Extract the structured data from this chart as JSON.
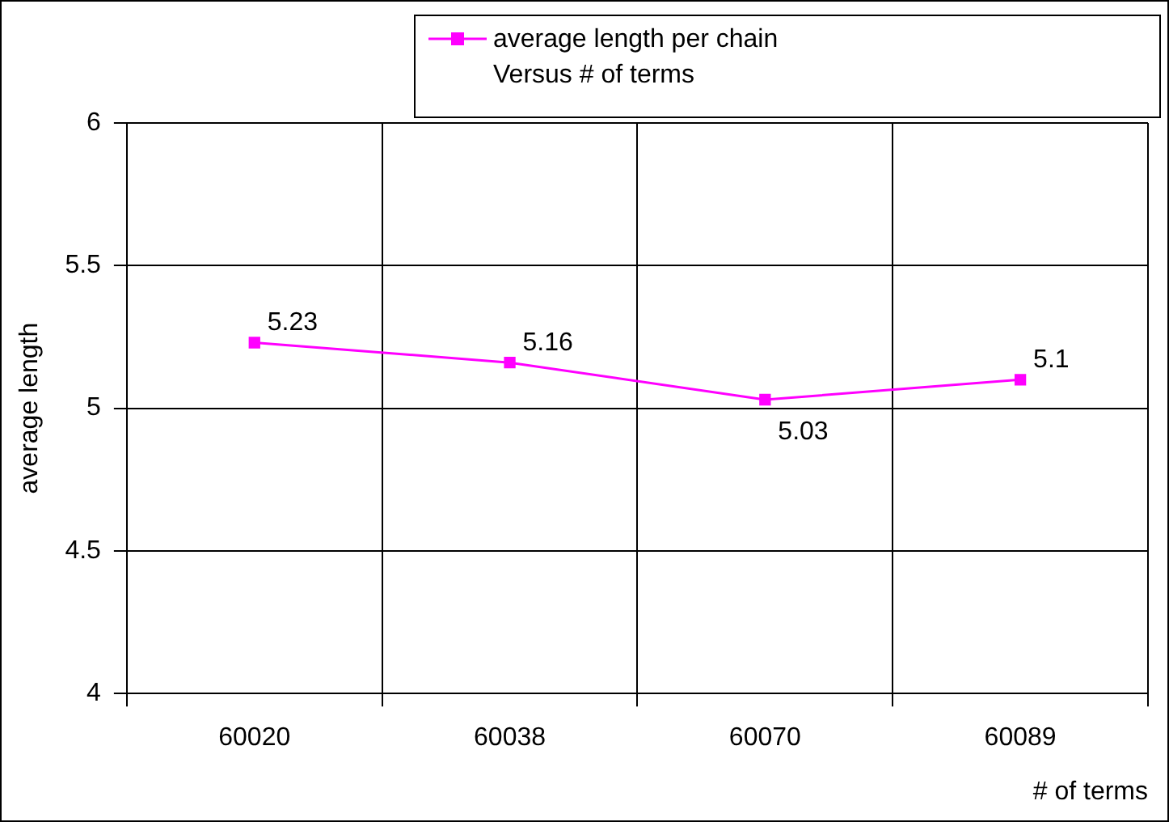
{
  "chart_data": {
    "type": "line",
    "xlabel": "# of terms",
    "ylabel": "average length",
    "categories": [
      "60020",
      "60038",
      "60070",
      "60089"
    ],
    "series": [
      {
        "name": "average length per chain Versus # of terms",
        "color": "#ff00ff",
        "values": [
          5.23,
          5.16,
          5.03,
          5.1
        ]
      }
    ],
    "ylim": [
      4,
      6
    ],
    "yticks": [
      4,
      4.5,
      5,
      5.5,
      6
    ],
    "grid": true,
    "legend": "top right",
    "marker": "square",
    "line_style": "solid",
    "data_labels": true
  }
}
